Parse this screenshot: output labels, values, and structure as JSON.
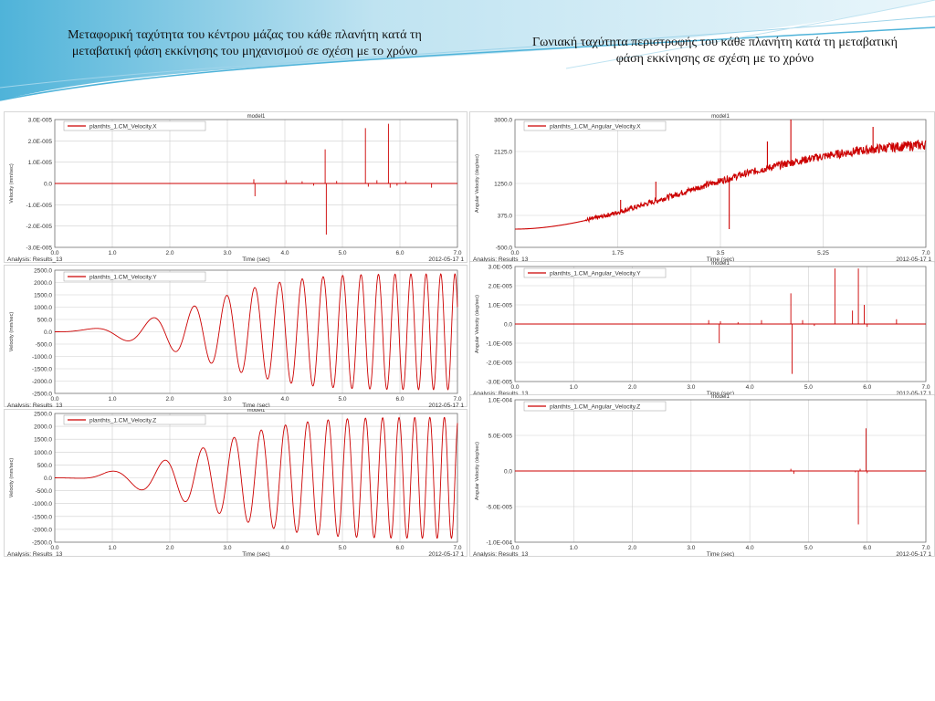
{
  "slide": {
    "title_left": "Μεταφορική ταχύτητα του κέντρου μάζας του κάθε πλανήτη κατά τη μεταβατική φάση εκκίνησης του μηχανισμού σε σχέση με το χρόνο",
    "title_right": "Γωνιακή ταχύτητα περιστροφής του κάθε πλανήτη κατά τη μεταβατική φάση εκκίνησης σε σχέση με το χρόνο"
  },
  "colors": {
    "trace": "#cc0000",
    "grid": "#cfcfcf",
    "axis": "#666666",
    "text": "#333333",
    "frame": "#bbbbbb"
  },
  "chart_data": [
    {
      "id": "vx",
      "type": "line",
      "top_label": "model1",
      "ylabel": "Velocity (mm/sec)",
      "xlabel": "Time (sec)",
      "xlim": [
        0,
        7
      ],
      "ylim": [
        -3e-05,
        3e-05
      ],
      "xticks": [
        "0.0",
        "1.0",
        "2.0",
        "3.0",
        "4.0",
        "5.0",
        "6.0",
        "7.0"
      ],
      "yticks": [
        "3.0E-005",
        "2.0E-005",
        "1.0E-005",
        "0.0",
        "-1.0E-005",
        "-2.0E-005",
        "-3.0E-005"
      ],
      "legend": "planthts_1.CM_Velocity.X",
      "analysis": "Analysis:  Results_13",
      "date": "2012-05-17 1",
      "series": [
        {
          "kind": "spikes",
          "spikes": [
            [
              3.48,
              -6e-06
            ],
            [
              3.46,
              2e-06
            ],
            [
              4.02,
              1.5e-06
            ],
            [
              4.3,
              1e-06
            ],
            [
              4.5,
              -1e-06
            ],
            [
              4.7,
              1.6e-05
            ],
            [
              4.72,
              -2.4e-05
            ],
            [
              4.9,
              1.2e-06
            ],
            [
              5.4,
              2.6e-05
            ],
            [
              5.45,
              -1.5e-06
            ],
            [
              5.6,
              1.5e-06
            ],
            [
              5.8,
              2.8e-05
            ],
            [
              5.83,
              -2e-06
            ],
            [
              5.95,
              -1e-06
            ],
            [
              6.1,
              1e-06
            ],
            [
              6.55,
              -2e-06
            ]
          ]
        }
      ]
    },
    {
      "id": "vy",
      "type": "line",
      "top_label": "",
      "ylabel": "Velocity (mm/sec)",
      "xlabel": "Time (sec)",
      "xlim": [
        0,
        7
      ],
      "ylim": [
        -2500,
        2500
      ],
      "xticks": [
        "0.0",
        "1.0",
        "2.0",
        "3.0",
        "4.0",
        "5.0",
        "6.0",
        "7.0"
      ],
      "yticks": [
        "2500.0",
        "2000.0",
        "1500.0",
        "1000.0",
        "500.0",
        "0.0",
        "-500.0",
        "-1000.0",
        "-1500.0",
        "-2000.0",
        "-2500.0"
      ],
      "legend": "planthts_1.CM_Velocity.Y",
      "analysis": "Analysis:  Results_13",
      "date": "2012-05-17 1",
      "series": [
        {
          "kind": "osc",
          "phase": "sin",
          "amp": 2350,
          "onset": 0.35
        }
      ]
    },
    {
      "id": "vz",
      "type": "line",
      "top_label": "model1",
      "ylabel": "Velocity (mm/sec)",
      "xlabel": "Time (sec)",
      "xlim": [
        0,
        7
      ],
      "ylim": [
        -2500,
        2500
      ],
      "xticks": [
        "0.0",
        "1.0",
        "2.0",
        "3.0",
        "4.0",
        "5.0",
        "6.0",
        "7.0"
      ],
      "yticks": [
        "2500.0",
        "2000.0",
        "1500.0",
        "1000.0",
        "500.0",
        "0.0",
        "-500.0",
        "-1000.0",
        "-1500.0",
        "-2000.0",
        "-2500.0"
      ],
      "legend": "planthts_1.CM_Velocity.Z",
      "analysis": "Analysis:  Results_13",
      "date": "2012-05-17 1",
      "series": [
        {
          "kind": "osc",
          "phase": "cos",
          "amp": 2350,
          "onset": 0.9
        }
      ]
    },
    {
      "id": "wx",
      "type": "line",
      "top_label": "model1",
      "ylabel": "Angular Velocity (deg/sec)",
      "xlabel": "Time (sec)",
      "xlim": [
        0,
        7
      ],
      "ylim": [
        -500,
        3000
      ],
      "xticks": [
        "0.0",
        "1.75",
        "3.5",
        "5.25",
        "7.0"
      ],
      "yticks": [
        "3000.0",
        "2125.0",
        "1250.0",
        "375.0",
        "-500.0"
      ],
      "legend": "planthts_1.CM_Angular_Velocity.X",
      "analysis": "Analysis:  Results_13",
      "date": "2012-05-17 1",
      "series": [
        {
          "kind": "ramp",
          "end": 2450,
          "noise": 200,
          "spikes": [
            [
              4.7,
              3000
            ],
            [
              4.3,
              2400
            ],
            [
              6.1,
              2800
            ],
            [
              3.65,
              0
            ],
            [
              2.4,
              1300
            ],
            [
              1.8,
              800
            ]
          ]
        }
      ]
    },
    {
      "id": "wy",
      "type": "line",
      "top_label": "model1",
      "ylabel": "Angular Velocity (deg/sec)",
      "xlabel": "Time (sec)",
      "xlim": [
        0,
        7
      ],
      "ylim": [
        -3e-05,
        3e-05
      ],
      "xticks": [
        "0.0",
        "1.0",
        "2.0",
        "3.0",
        "4.0",
        "5.0",
        "6.0",
        "7.0"
      ],
      "yticks": [
        "3.0E-005",
        "2.0E-005",
        "1.0E-005",
        "0.0",
        "-1.0E-005",
        "-2.0E-005",
        "-3.0E-005"
      ],
      "legend": "planthts_1.CM_Angular_Velocity.Y",
      "analysis": "Analysis:  Results_13",
      "date": "2012-05-17 1",
      "series": [
        {
          "kind": "spikes",
          "spikes": [
            [
              3.3,
              2e-06
            ],
            [
              3.48,
              -1e-05
            ],
            [
              3.5,
              1.5e-06
            ],
            [
              3.8,
              1e-06
            ],
            [
              4.2,
              2e-06
            ],
            [
              4.7,
              1.6e-05
            ],
            [
              4.72,
              -2.6e-05
            ],
            [
              4.9,
              2e-06
            ],
            [
              5.1,
              -1e-06
            ],
            [
              5.45,
              2.9e-05
            ],
            [
              5.75,
              7e-06
            ],
            [
              5.85,
              2.9e-05
            ],
            [
              5.95,
              1e-05
            ],
            [
              6.0,
              -1.5e-06
            ],
            [
              6.5,
              2.5e-06
            ]
          ]
        }
      ]
    },
    {
      "id": "wz",
      "type": "line",
      "top_label": "model1",
      "ylabel": "Angular Velocity (deg/sec)",
      "xlabel": "Time (sec)",
      "xlim": [
        0,
        7
      ],
      "ylim": [
        -0.0001,
        0.0001
      ],
      "xticks": [
        "0.0",
        "1.0",
        "2.0",
        "3.0",
        "4.0",
        "5.0",
        "6.0",
        "7.0"
      ],
      "yticks": [
        "1.0E-004",
        "5.0E-005",
        "0.0",
        "-5.0E-005",
        "-1.0E-004"
      ],
      "legend": "planthts_1.CM_Angular_Velocity.Z",
      "analysis": "Analysis:  Results_13",
      "date": "2012-05-17 1",
      "series": [
        {
          "kind": "spikes",
          "spikes": [
            [
              4.7,
              3e-06
            ],
            [
              4.75,
              -4e-06
            ],
            [
              5.8,
              -2e-06
            ],
            [
              5.85,
              -7.5e-05
            ],
            [
              5.88,
              3e-06
            ],
            [
              5.98,
              6e-05
            ],
            [
              6.0,
              -3e-06
            ]
          ]
        }
      ]
    }
  ]
}
